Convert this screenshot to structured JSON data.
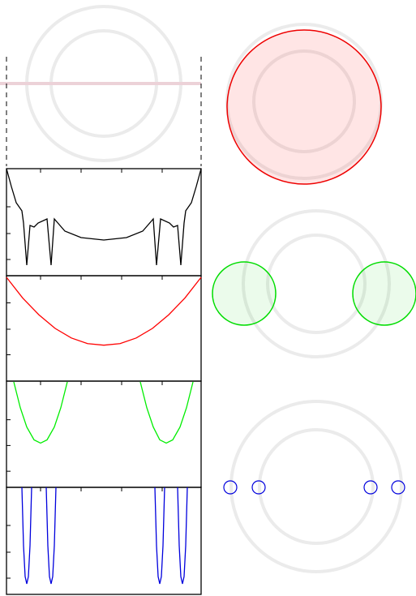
{
  "chart_data": [
    {
      "type": "line",
      "xlim": [
        0,
        240
      ],
      "ylim": [
        0,
        132
      ],
      "xticks": [
        42,
        92,
        142,
        192
      ],
      "yticks": [
        20,
        52,
        85
      ],
      "x": [
        0,
        6,
        12,
        19,
        21,
        25,
        29,
        34,
        39,
        50,
        55,
        59,
        72,
        92,
        120,
        148,
        168,
        181,
        185,
        190,
        201,
        206,
        211,
        215,
        219,
        221,
        228,
        234,
        240
      ],
      "series": [
        {
          "color": "#000000",
          "values": [
            132,
            110,
            90,
            80,
            65,
            13,
            62,
            60,
            65,
            70,
            13,
            70,
            55,
            47,
            44,
            47,
            55,
            70,
            13,
            70,
            65,
            60,
            62,
            13,
            65,
            80,
            90,
            110,
            132
          ]
        }
      ]
    },
    {
      "type": "line",
      "xlim": [
        0,
        240
      ],
      "ylim": [
        0,
        132
      ],
      "xticks": [
        42,
        92,
        142,
        192
      ],
      "yticks": [
        33,
        65,
        98
      ],
      "x": [
        0,
        20,
        40,
        60,
        80,
        100,
        120,
        140,
        160,
        180,
        200,
        220,
        240
      ],
      "series": [
        {
          "color": "#ff0000",
          "values": [
            130,
            104,
            83,
            66,
            54,
            47,
            45,
            47,
            54,
            66,
            83,
            104,
            130
          ]
        }
      ]
    },
    {
      "type": "line",
      "xlim": [
        0,
        240
      ],
      "ylim": [
        0,
        132
      ],
      "xticks": [
        42,
        92,
        142,
        192
      ],
      "yticks": [
        20,
        52,
        84
      ],
      "x": [
        9,
        17,
        25,
        34,
        42,
        50,
        59,
        67,
        75,
        120,
        165,
        173,
        181,
        189,
        197,
        205,
        214,
        222,
        230
      ],
      "series": [
        {
          "color": "#00ee00",
          "values": [
            131,
            99,
            75,
            59,
            55,
            59,
            75,
            99,
            131,
            null,
            131,
            99,
            75,
            59,
            55,
            59,
            75,
            99,
            131
          ]
        }
      ]
    },
    {
      "type": "line",
      "xlim": [
        0,
        240
      ],
      "ylim": [
        0,
        132
      ],
      "xticks": [
        42,
        92,
        142,
        192
      ],
      "yticks": [
        20,
        52,
        85
      ],
      "x": [
        19,
        21,
        23,
        25,
        27,
        29,
        31,
        40,
        49,
        51,
        53,
        55,
        57,
        59,
        61,
        120,
        183,
        185,
        187,
        189,
        191,
        193,
        195,
        203,
        211,
        213,
        215,
        217,
        219,
        221,
        223
      ],
      "series": [
        {
          "color": "#0000dd",
          "values": [
            132,
            60,
            22,
            13,
            22,
            60,
            132,
            null,
            132,
            60,
            22,
            13,
            22,
            60,
            132,
            null,
            132,
            60,
            22,
            13,
            22,
            60,
            132,
            null,
            132,
            60,
            22,
            13,
            22,
            60,
            132
          ]
        }
      ]
    }
  ]
}
